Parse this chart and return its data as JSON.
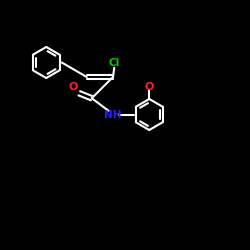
{
  "background": "#000000",
  "white": "#ffffff",
  "green": "#00cc00",
  "red": "#ff2020",
  "blue": "#2020ff",
  "lw": 1.5,
  "ring_r": 0.62,
  "xlim": [
    0,
    10
  ],
  "ylim": [
    0,
    10
  ],
  "figsize": [
    2.5,
    2.5
  ],
  "dpi": 100
}
